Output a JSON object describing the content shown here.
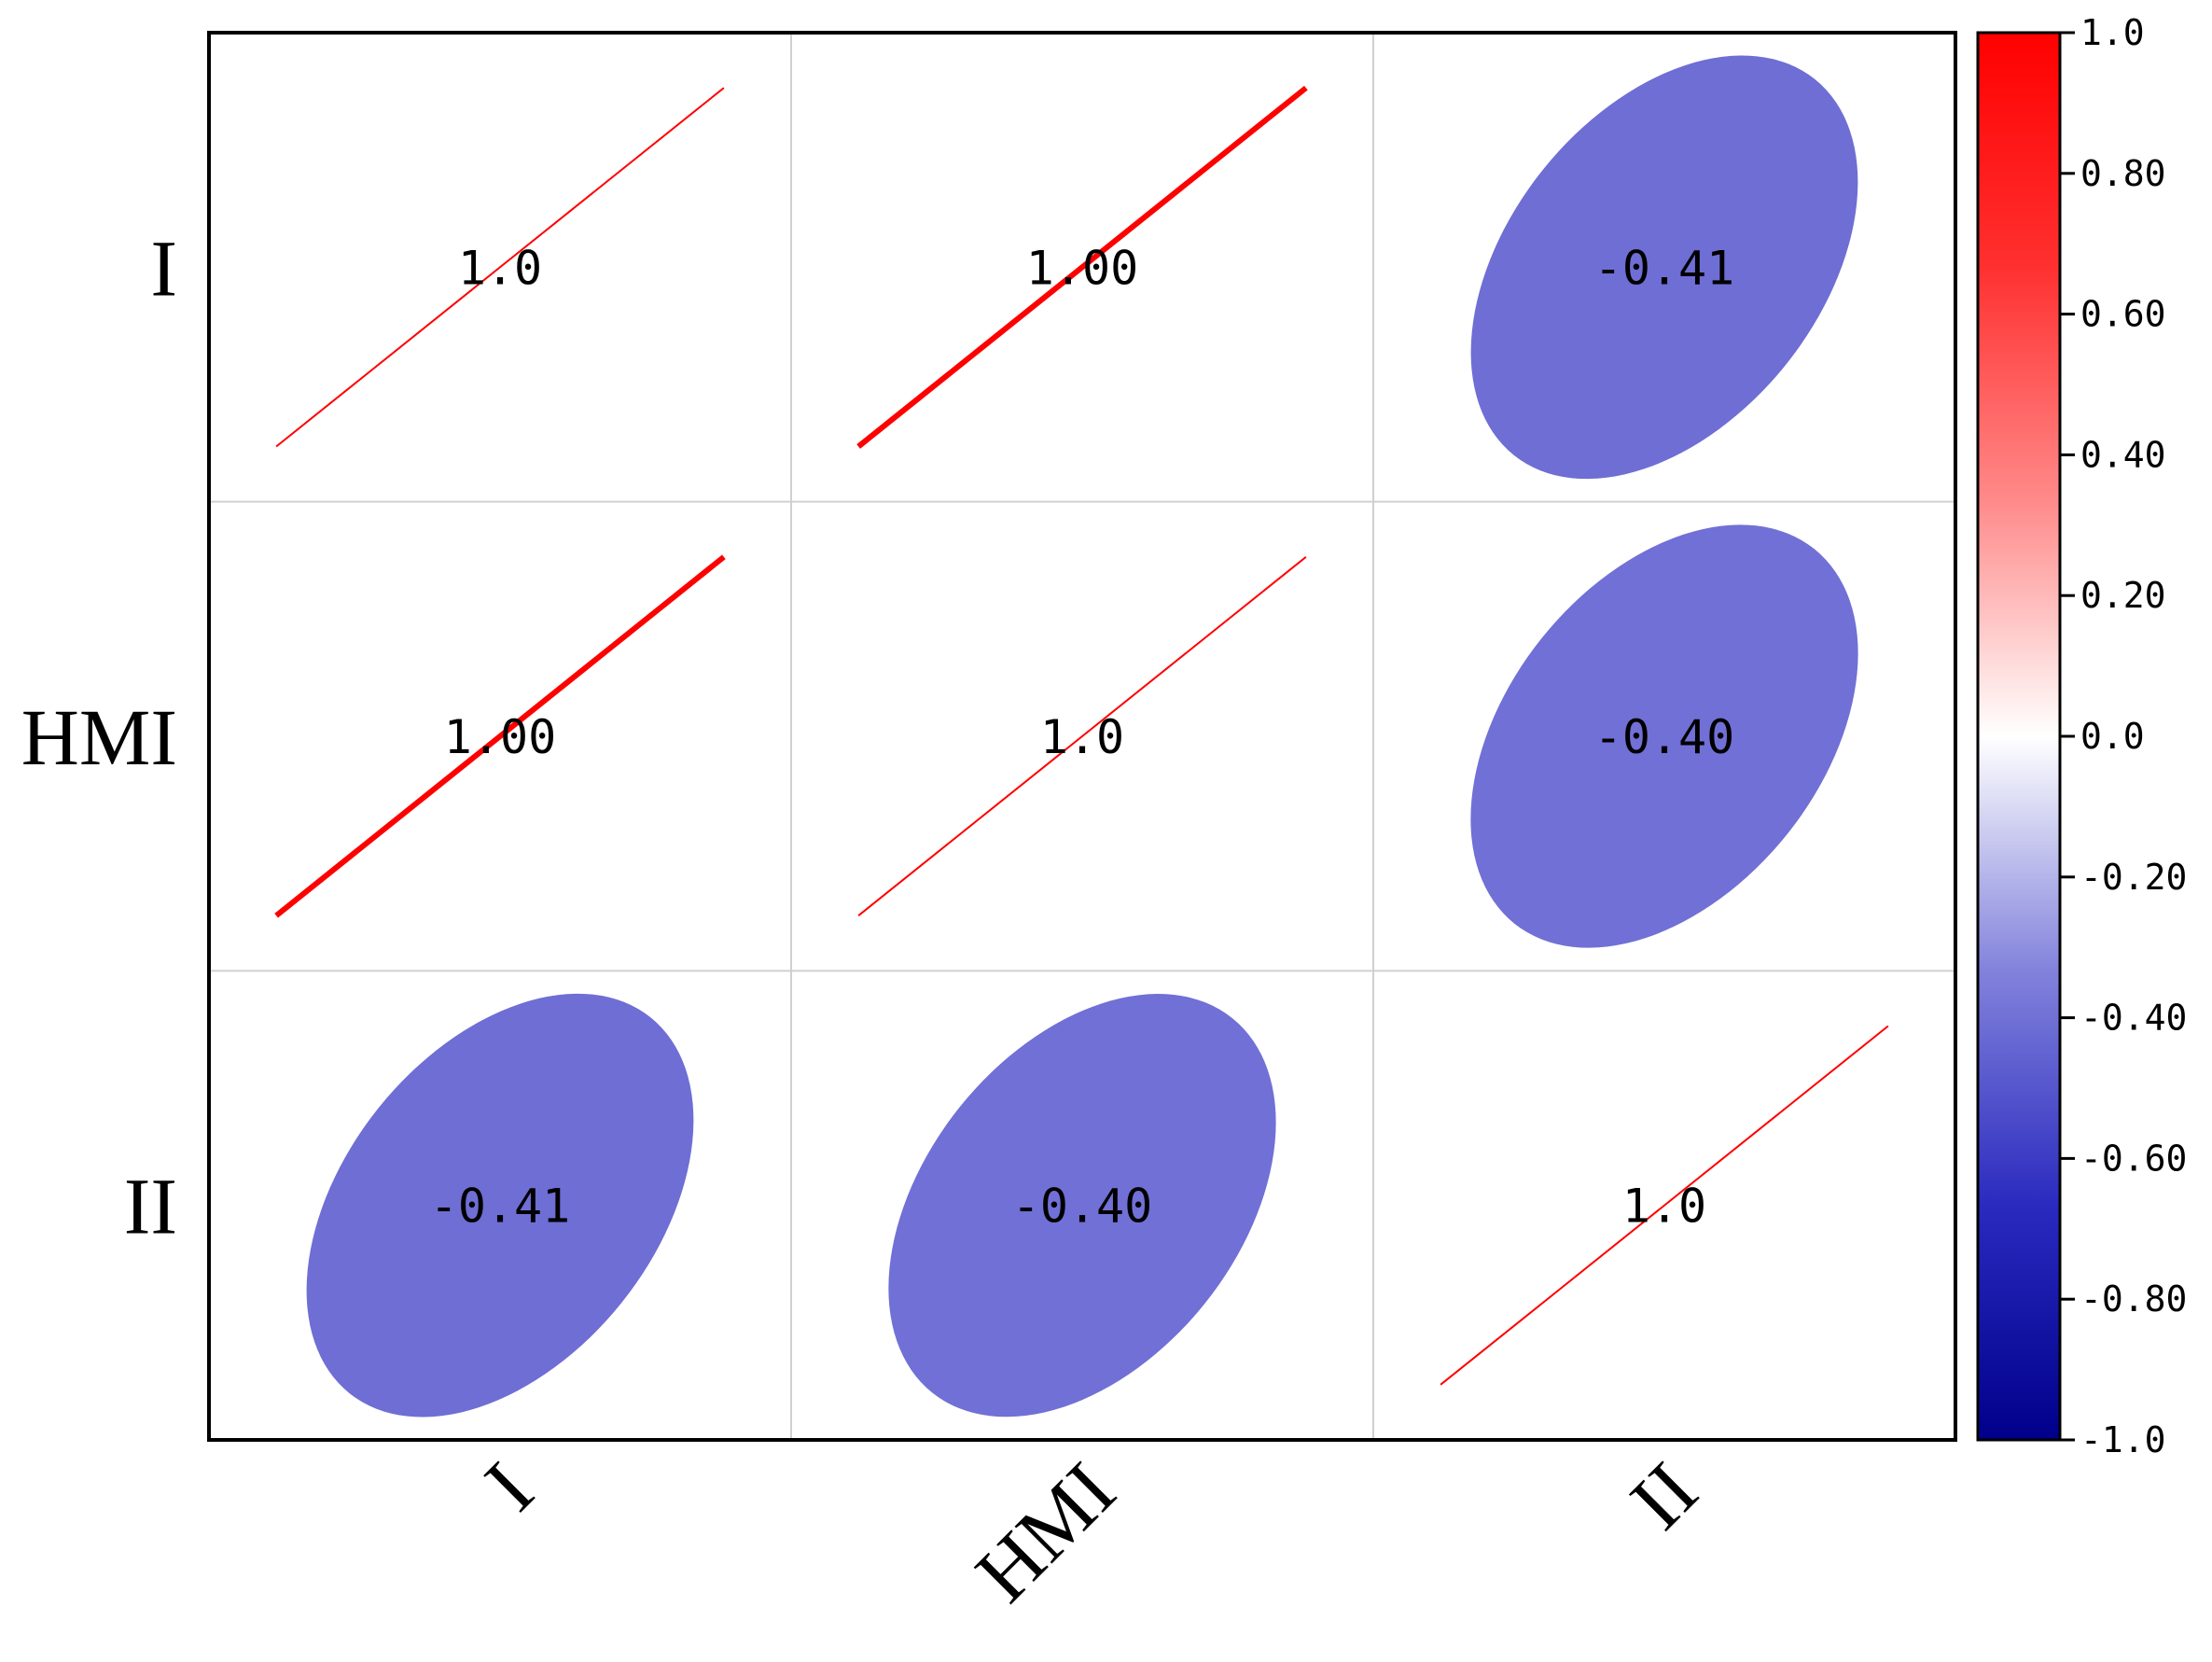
{
  "chart_data": {
    "type": "heatmap",
    "style": "correlation-ellipse",
    "variables": [
      "I",
      "HMI",
      "II"
    ],
    "matrix": [
      [
        1.0,
        1.0,
        -0.41
      ],
      [
        1.0,
        1.0,
        -0.4
      ],
      [
        -0.41,
        -0.4,
        1.0
      ]
    ],
    "cell_labels": [
      [
        "1.0",
        "1.00",
        "-0.41"
      ],
      [
        "1.00",
        "1.0",
        "-0.40"
      ],
      [
        "-0.41",
        "-0.40",
        "1.0"
      ]
    ],
    "title": "",
    "xlabel": "",
    "ylabel": "",
    "x_tick_rotation": "-45",
    "grid": true,
    "colorbar": {
      "position": "right",
      "range": [
        -1.0,
        1.0
      ],
      "ticks": [
        1.0,
        0.8,
        0.6,
        0.4,
        0.2,
        0.0,
        -0.2,
        -0.4,
        -0.6,
        -0.8,
        -1.0
      ],
      "tick_labels": [
        "1.0",
        "0.80",
        "0.60",
        "0.40",
        "0.20",
        "0.0",
        "-0.20",
        "-0.40",
        "-0.60",
        "-0.80",
        "-1.0"
      ],
      "colormap": [
        "#00008b",
        "#2a2abf",
        "#8282dc",
        "#ffffff",
        "#ff8a8a",
        "#ff3030",
        "#ff0000"
      ]
    }
  }
}
